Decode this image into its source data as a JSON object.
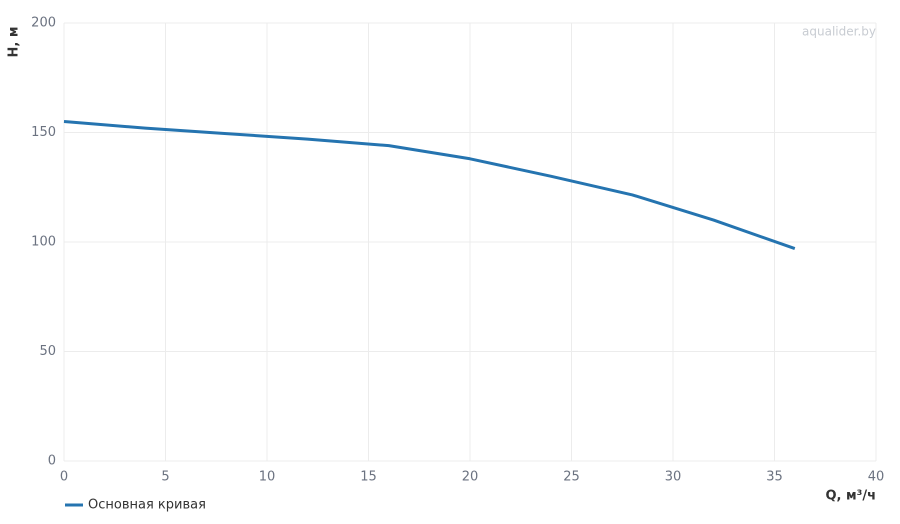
{
  "chart_data": {
    "type": "line",
    "x_label": "Q, м³/ч",
    "y_label": "H, м",
    "watermark": "aqualider.by",
    "x": [
      0,
      4,
      8,
      12,
      16,
      20,
      24,
      28,
      32,
      36
    ],
    "series": [
      {
        "name": "Основная кривая",
        "color": "#2574b0",
        "values": [
          155,
          152,
          149.5,
          147,
          144,
          138,
          130,
          121.5,
          110,
          97
        ]
      }
    ],
    "xlim": [
      0,
      40
    ],
    "xticks": [
      0,
      5,
      10,
      15,
      20,
      25,
      30,
      35,
      40
    ],
    "ylim": [
      0,
      200
    ],
    "yticks": [
      0,
      50,
      100,
      150,
      200
    ],
    "grid": true
  }
}
